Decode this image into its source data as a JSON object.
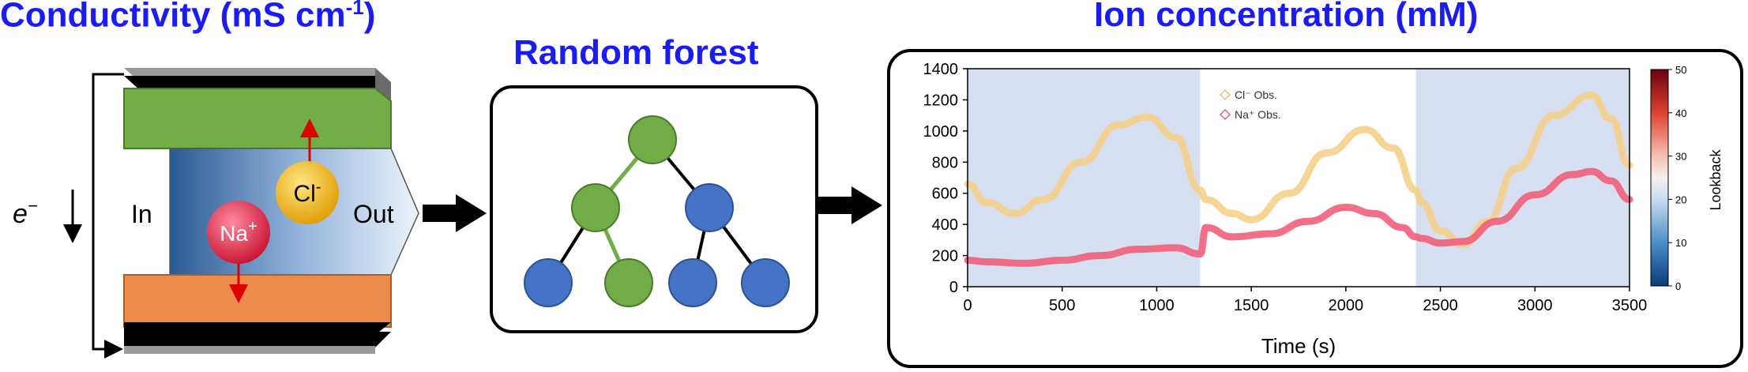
{
  "headings": {
    "conductivity": "Conductivity (mS cm",
    "conductivity_sup": "-1",
    "conductivity_close": ")",
    "random_forest": "Random forest",
    "ion_concentration": "Ion concentration (mM)"
  },
  "cell": {
    "electron": "e",
    "electron_sup": "−",
    "in_label": "In",
    "out_label": "Out",
    "cl_ion": "Cl",
    "cl_sup": "-",
    "na_ion": "Na",
    "na_sup": "+"
  },
  "colors": {
    "heading": "#1a1aff",
    "green_plate": "#70ad47",
    "orange_plate": "#ed8b4b",
    "tree_green": "#70ad47",
    "tree_blue": "#4472c4",
    "cl_series": "#f5d08a",
    "na_series": "#f0607a",
    "shade": "#d6e0f0"
  },
  "chart_data": {
    "type": "line",
    "xlabel": "Time (s)",
    "ylabel": "",
    "xlim": [
      0,
      3500
    ],
    "ylim": [
      0,
      1400
    ],
    "x_ticks": [
      "0",
      "500",
      "1000",
      "1500",
      "2000",
      "2500",
      "3000",
      "3500"
    ],
    "y_ticks": [
      "0",
      "200",
      "400",
      "600",
      "800",
      "1000",
      "1200",
      "1400"
    ],
    "shaded_regions": [
      [
        0,
        1230
      ],
      [
        2370,
        3500
      ]
    ],
    "legend": [
      "Cl⁻ Obs.",
      "Na⁺ Obs."
    ],
    "legend_placement": "top-left inside unshaded region",
    "series": [
      {
        "name": "Cl⁻ Obs.",
        "x": [
          0,
          100,
          250,
          400,
          600,
          800,
          950,
          1100,
          1230,
          1260,
          1400,
          1500,
          1700,
          1900,
          2100,
          2250,
          2370,
          2400,
          2500,
          2620,
          2750,
          2900,
          3100,
          3300,
          3400,
          3500
        ],
        "y": [
          660,
          540,
          470,
          560,
          800,
          1040,
          1090,
          960,
          620,
          560,
          470,
          430,
          600,
          860,
          1010,
          890,
          620,
          540,
          360,
          270,
          420,
          760,
          1100,
          1230,
          1080,
          780
        ]
      },
      {
        "name": "Na⁺ Obs.",
        "x": [
          0,
          100,
          300,
          500,
          700,
          900,
          1100,
          1230,
          1260,
          1400,
          1600,
          1800,
          2000,
          2150,
          2300,
          2370,
          2400,
          2500,
          2620,
          2800,
          3000,
          3200,
          3300,
          3400,
          3500
        ],
        "y": [
          170,
          160,
          150,
          170,
          200,
          240,
          250,
          210,
          380,
          320,
          340,
          420,
          510,
          470,
          380,
          320,
          310,
          280,
          290,
          420,
          590,
          720,
          740,
          680,
          560
        ]
      }
    ],
    "colorbar": {
      "label": "Lookback",
      "ticks": [
        "0",
        "10",
        "20",
        "30",
        "40",
        "50"
      ],
      "range": [
        0,
        50
      ]
    }
  }
}
